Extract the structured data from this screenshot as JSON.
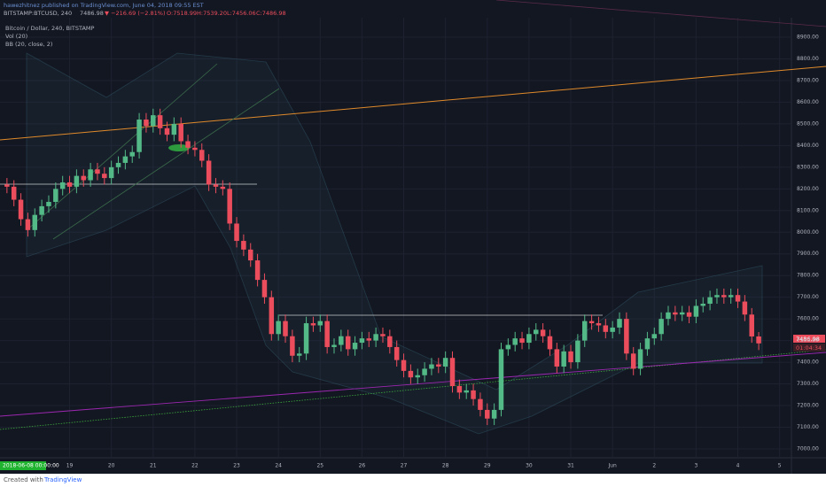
{
  "header": {
    "publisher": "hawezhitnez published on TradingView.com, June 04, 2018 09:55 EST",
    "symbol": "BITSTAMP:BTCUSD, 240",
    "last": "7486.98",
    "change": "▼ −216.69 (−2.81%)",
    "open": "O:7518.99",
    "high": "H:7539.20",
    "low": "L:7456.06",
    "close": "C:7486.98"
  },
  "legend": [
    "Bitcoin / Dollar, 240, BITSTAMP",
    "Vol (20)",
    "BB (20, close, 2)"
  ],
  "price_tag": {
    "last": "7486.98",
    "countdown": "01:04:34"
  },
  "cursor_date": "2018-06-08 00:00:00",
  "footer": {
    "created": "Created with",
    "brand": "TradingView"
  },
  "chart_data": {
    "type": "candlestick",
    "up_color": "#53b987",
    "down_color": "#eb4d5c",
    "grid": true,
    "xlim": [
      -1,
      112.7
    ],
    "ylim": [
      6959,
      8990
    ],
    "xticks": [
      {
        "value": 9,
        "label": "19"
      },
      {
        "value": 15,
        "label": "20"
      },
      {
        "value": 21,
        "label": "21"
      },
      {
        "value": 27,
        "label": "22"
      },
      {
        "value": 33,
        "label": "23"
      },
      {
        "value": 39,
        "label": "24"
      },
      {
        "value": 45,
        "label": "25"
      },
      {
        "value": 51,
        "label": "26"
      },
      {
        "value": 57,
        "label": "27"
      },
      {
        "value": 63,
        "label": "28"
      },
      {
        "value": 69,
        "label": "29"
      },
      {
        "value": 75,
        "label": "30"
      },
      {
        "value": 81,
        "label": "31"
      },
      {
        "value": 87,
        "label": "Jun"
      },
      {
        "value": 93,
        "label": "2"
      },
      {
        "value": 99,
        "label": "3"
      },
      {
        "value": 105,
        "label": "4"
      },
      {
        "value": 111,
        "label": "5"
      }
    ],
    "yticks": [
      {
        "value": 7000,
        "label": "7000.00"
      },
      {
        "value": 7100,
        "label": "7100.00"
      },
      {
        "value": 7200,
        "label": "7200.00"
      },
      {
        "value": 7300,
        "label": "7300.00"
      },
      {
        "value": 7400,
        "label": "7400.00"
      },
      {
        "value": 7500,
        "label": "7500.00"
      },
      {
        "value": 7600,
        "label": "7600.00"
      },
      {
        "value": 7700,
        "label": "7700.00"
      },
      {
        "value": 7800,
        "label": "7800.00"
      },
      {
        "value": 7900,
        "label": "7900.00"
      },
      {
        "value": 8000,
        "label": "8000.00"
      },
      {
        "value": 8100,
        "label": "8100.00"
      },
      {
        "value": 8200,
        "label": "8200.00"
      },
      {
        "value": 8300,
        "label": "8300.00"
      },
      {
        "value": 8400,
        "label": "8400.00"
      },
      {
        "value": 8500,
        "label": "8500.00"
      },
      {
        "value": 8600,
        "label": "8600.00"
      },
      {
        "value": 8700,
        "label": "8700.00"
      },
      {
        "value": 8800,
        "label": "8800.00"
      },
      {
        "value": 8900,
        "label": "8900.00"
      }
    ],
    "open": [
      8220,
      8210,
      8150,
      8060,
      8010,
      8080,
      8120,
      8140,
      8200,
      8230,
      8210,
      8260,
      8240,
      8290,
      8270,
      8250,
      8300,
      8320,
      8350,
      8370,
      8520,
      8490,
      8540,
      8480,
      8450,
      8500,
      8420,
      8390,
      8380,
      8330,
      8220,
      8210,
      8200,
      8040,
      7960,
      7920,
      7870,
      7780,
      7700,
      7530,
      7590,
      7520,
      7430,
      7440,
      7580,
      7570,
      7590,
      7470,
      7480,
      7520,
      7460,
      7490,
      7510,
      7500,
      7530,
      7520,
      7470,
      7410,
      7360,
      7330,
      7340,
      7370,
      7390,
      7380,
      7420,
      7290,
      7260,
      7270,
      7230,
      7180,
      7140,
      7180,
      7460,
      7480,
      7510,
      7490,
      7530,
      7550,
      7520,
      7460,
      7380,
      7450,
      7400,
      7500,
      7590,
      7580,
      7570,
      7540,
      7560,
      7600,
      7440,
      7370,
      7460,
      7510,
      7530,
      7600,
      7630,
      7620,
      7630,
      7610,
      7660,
      7670,
      7700,
      7710,
      7700,
      7710,
      7680,
      7620,
      7518.99
    ],
    "high": [
      8250,
      8240,
      8180,
      8090,
      8110,
      8150,
      8170,
      8230,
      8260,
      8260,
      8290,
      8290,
      8320,
      8320,
      8300,
      8330,
      8350,
      8380,
      8400,
      8550,
      8550,
      8570,
      8570,
      8510,
      8530,
      8530,
      8450,
      8420,
      8410,
      8360,
      8250,
      8240,
      8230,
      8070,
      7990,
      7950,
      7900,
      7810,
      7730,
      7620,
      7620,
      7550,
      7470,
      7610,
      7610,
      7620,
      7620,
      7510,
      7550,
      7550,
      7520,
      7540,
      7540,
      7560,
      7560,
      7550,
      7500,
      7440,
      7390,
      7370,
      7400,
      7420,
      7420,
      7450,
      7450,
      7320,
      7300,
      7300,
      7260,
      7210,
      7210,
      7490,
      7510,
      7540,
      7540,
      7560,
      7580,
      7580,
      7550,
      7490,
      7480,
      7480,
      7530,
      7620,
      7620,
      7610,
      7600,
      7590,
      7630,
      7630,
      7470,
      7490,
      7540,
      7560,
      7630,
      7660,
      7660,
      7660,
      7660,
      7690,
      7700,
      7730,
      7740,
      7740,
      7740,
      7740,
      7710,
      7650,
      7539.2
    ],
    "low": [
      8180,
      8120,
      8030,
      7980,
      7980,
      8050,
      8090,
      8110,
      8170,
      8180,
      8180,
      8210,
      8210,
      8240,
      8220,
      8220,
      8270,
      8290,
      8320,
      8340,
      8460,
      8460,
      8450,
      8420,
      8420,
      8390,
      8360,
      8350,
      8300,
      8190,
      8180,
      8170,
      8010,
      7930,
      7890,
      7840,
      7750,
      7670,
      7500,
      7500,
      7490,
      7400,
      7400,
      7410,
      7540,
      7540,
      7440,
      7440,
      7450,
      7430,
      7430,
      7460,
      7470,
      7470,
      7490,
      7440,
      7380,
      7330,
      7300,
      7300,
      7310,
      7340,
      7350,
      7350,
      7260,
      7230,
      7230,
      7200,
      7150,
      7110,
      7110,
      7150,
      7430,
      7450,
      7460,
      7460,
      7500,
      7490,
      7430,
      7350,
      7350,
      7370,
      7370,
      7470,
      7550,
      7540,
      7510,
      7510,
      7530,
      7410,
      7340,
      7340,
      7430,
      7480,
      7500,
      7570,
      7590,
      7590,
      7580,
      7580,
      7630,
      7640,
      7670,
      7670,
      7670,
      7650,
      7590,
      7490,
      7456.06
    ],
    "close": [
      8210,
      8150,
      8060,
      8010,
      8080,
      8120,
      8140,
      8200,
      8230,
      8210,
      8260,
      8240,
      8290,
      8270,
      8250,
      8300,
      8320,
      8350,
      8370,
      8520,
      8490,
      8540,
      8480,
      8450,
      8500,
      8420,
      8390,
      8380,
      8330,
      8220,
      8210,
      8200,
      8040,
      7960,
      7920,
      7870,
      7780,
      7700,
      7530,
      7590,
      7520,
      7430,
      7440,
      7580,
      7570,
      7590,
      7470,
      7480,
      7520,
      7460,
      7490,
      7510,
      7500,
      7530,
      7520,
      7470,
      7410,
      7360,
      7330,
      7340,
      7370,
      7390,
      7380,
      7420,
      7290,
      7260,
      7270,
      7230,
      7180,
      7140,
      7180,
      7460,
      7480,
      7510,
      7490,
      7530,
      7550,
      7520,
      7460,
      7380,
      7450,
      7400,
      7500,
      7590,
      7580,
      7570,
      7540,
      7560,
      7600,
      7440,
      7370,
      7460,
      7510,
      7530,
      7600,
      7630,
      7620,
      7630,
      7610,
      7660,
      7670,
      7700,
      7710,
      7700,
      7710,
      7680,
      7620,
      7518.99,
      7486.98
    ]
  }
}
